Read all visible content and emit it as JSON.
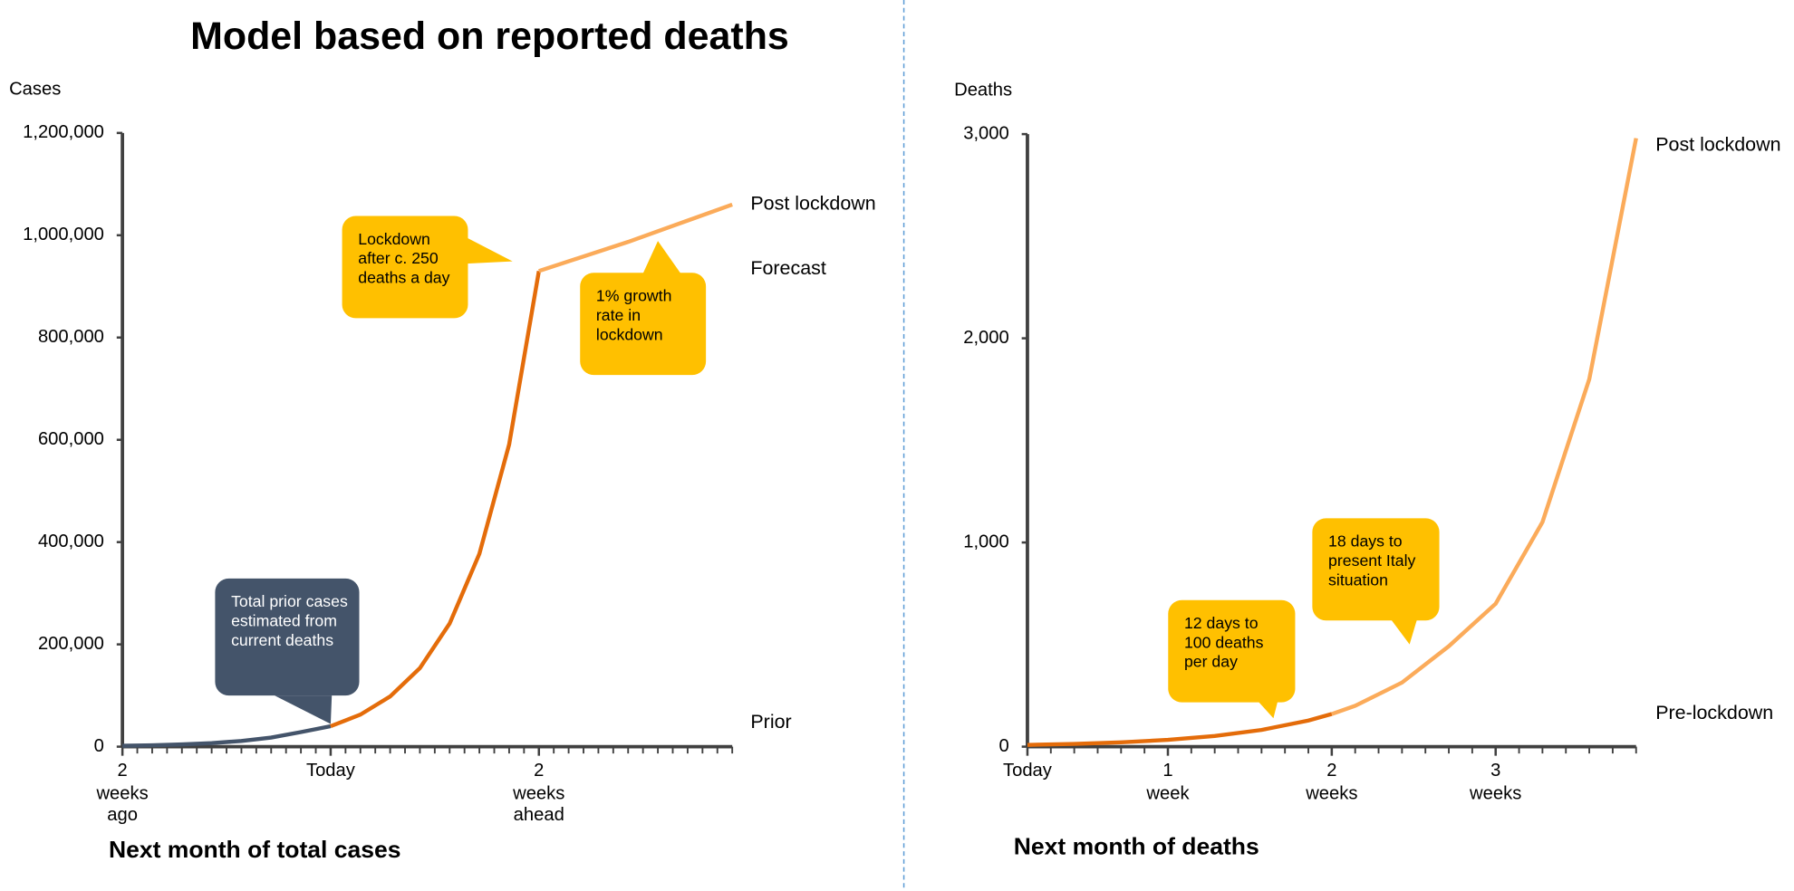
{
  "title": "Model based on reported deaths",
  "chart_data": [
    {
      "type": "line",
      "ylabel": "Cases",
      "xlabel": "Next month of total cases",
      "xlim": [
        -14,
        27
      ],
      "ylim": [
        0,
        1200000
      ],
      "xticks": [
        {
          "value": -14,
          "label": "2 weeks ago"
        },
        {
          "value": 0,
          "label": "Today"
        },
        {
          "value": 14,
          "label": "2 weeks ahead"
        }
      ],
      "yticks": [
        0,
        {
          "value": 200000,
          "label": "200,000"
        },
        {
          "value": 400000,
          "label": "400,000"
        },
        {
          "value": 600000,
          "label": "600,000"
        },
        {
          "value": 800000,
          "label": "800,000"
        },
        {
          "value": 1000000,
          "label": "1,000,000"
        },
        {
          "value": 1200000,
          "label": "1,200,000"
        }
      ],
      "series": [
        {
          "name": "Prior",
          "color": "#44546a",
          "x": [
            -14,
            -12,
            -10,
            -8,
            -6,
            -4,
            -2,
            0
          ],
          "values": [
            1720,
            2746,
            4384,
            6998,
            11172,
            17835,
            28472,
            40000
          ]
        },
        {
          "name": "Forecast",
          "color": "#e46c0a",
          "x": [
            0,
            2,
            4,
            6,
            8,
            10,
            12,
            14
          ],
          "values": [
            40000,
            62660,
            98150,
            153700,
            240800,
            377200,
            590900,
            930000
          ]
        },
        {
          "name": "Post lockdown",
          "color": "#fbab5a",
          "x": [
            14,
            20,
            27
          ],
          "values": [
            930000,
            987000,
            1060000
          ]
        }
      ],
      "annotations": [
        {
          "text": "Total prior cases estimated from current deaths",
          "color": "#44546a"
        },
        {
          "text": "Lockdown after c. 250 deaths a day",
          "color": "#ffc000"
        },
        {
          "text": "1% growth rate in lockdown",
          "color": "#ffc000"
        }
      ]
    },
    {
      "type": "line",
      "ylabel": "Deaths",
      "xlabel": "Next month of deaths",
      "xlim": [
        0,
        26
      ],
      "ylim": [
        0,
        3000
      ],
      "xticks": [
        {
          "value": 0,
          "label": "Today"
        },
        {
          "value": 6,
          "label": "1 week"
        },
        {
          "value": 13,
          "label": "2 weeks"
        },
        {
          "value": 20,
          "label": "3 weeks"
        }
      ],
      "yticks": [
        0,
        {
          "value": 1000,
          "label": "1,000"
        },
        {
          "value": 2000,
          "label": "2,000"
        },
        {
          "value": 3000,
          "label": "3,000"
        }
      ],
      "series": [
        {
          "name": "Pre-lockdown",
          "color": "#e46c0a",
          "x": [
            0,
            2,
            4,
            6,
            8,
            10,
            12,
            13
          ],
          "values": [
            8.7,
            13.6,
            21.3,
            33.4,
            52.3,
            81.9,
            128,
            160
          ]
        },
        {
          "name": "Post lockdown",
          "color": "#fbab5a",
          "x": [
            13,
            14,
            16,
            18,
            20,
            22,
            24,
            26
          ],
          "values": [
            160,
            200,
            314,
            492,
            700,
            1100,
            1800,
            2980
          ]
        }
      ],
      "annotations": [
        {
          "text": "12 days to 100 deaths per day",
          "color": "#ffc000"
        },
        {
          "text": "18 days to present Italy situation",
          "color": "#ffc000"
        }
      ]
    }
  ]
}
